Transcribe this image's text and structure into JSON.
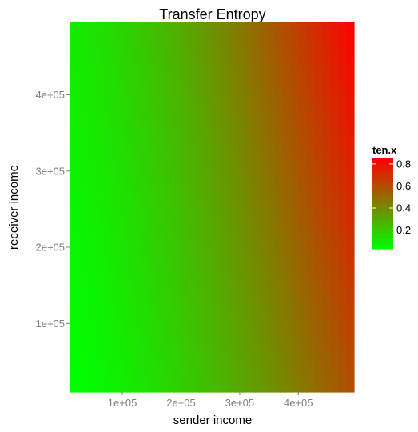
{
  "chart_data": {
    "type": "heatmap",
    "title": "Transfer Entropy",
    "xlabel": "sender income",
    "ylabel": "receiver income",
    "x_ticks": [
      {
        "value": 100000,
        "label": "1e+05"
      },
      {
        "value": 200000,
        "label": "2e+05"
      },
      {
        "value": 300000,
        "label": "3e+05"
      },
      {
        "value": 400000,
        "label": "4e+05"
      }
    ],
    "y_ticks": [
      {
        "value": 100000,
        "label": "1e+05"
      },
      {
        "value": 200000,
        "label": "2e+05"
      },
      {
        "value": 300000,
        "label": "3e+05"
      },
      {
        "value": 400000,
        "label": "4e+05"
      }
    ],
    "xlim": [
      10000,
      495000
    ],
    "ylim": [
      10000,
      495000
    ],
    "fill": {
      "name": "ten.x",
      "low_color": "#00ff00",
      "high_color": "#ff0000",
      "limits": [
        0.03,
        0.85
      ],
      "breaks": [
        {
          "value": 0.8,
          "label": "0.8"
        },
        {
          "value": 0.6,
          "label": "0.6"
        },
        {
          "value": 0.4,
          "label": "0.4"
        },
        {
          "value": 0.2,
          "label": "0.2"
        }
      ]
    },
    "corner_values": {
      "low_sender_low_receiver": 0.03,
      "low_sender_high_receiver": 0.1,
      "high_sender_low_receiver": 0.6,
      "high_sender_high_receiver": 0.85
    },
    "grid": false,
    "legend_position": "right"
  }
}
